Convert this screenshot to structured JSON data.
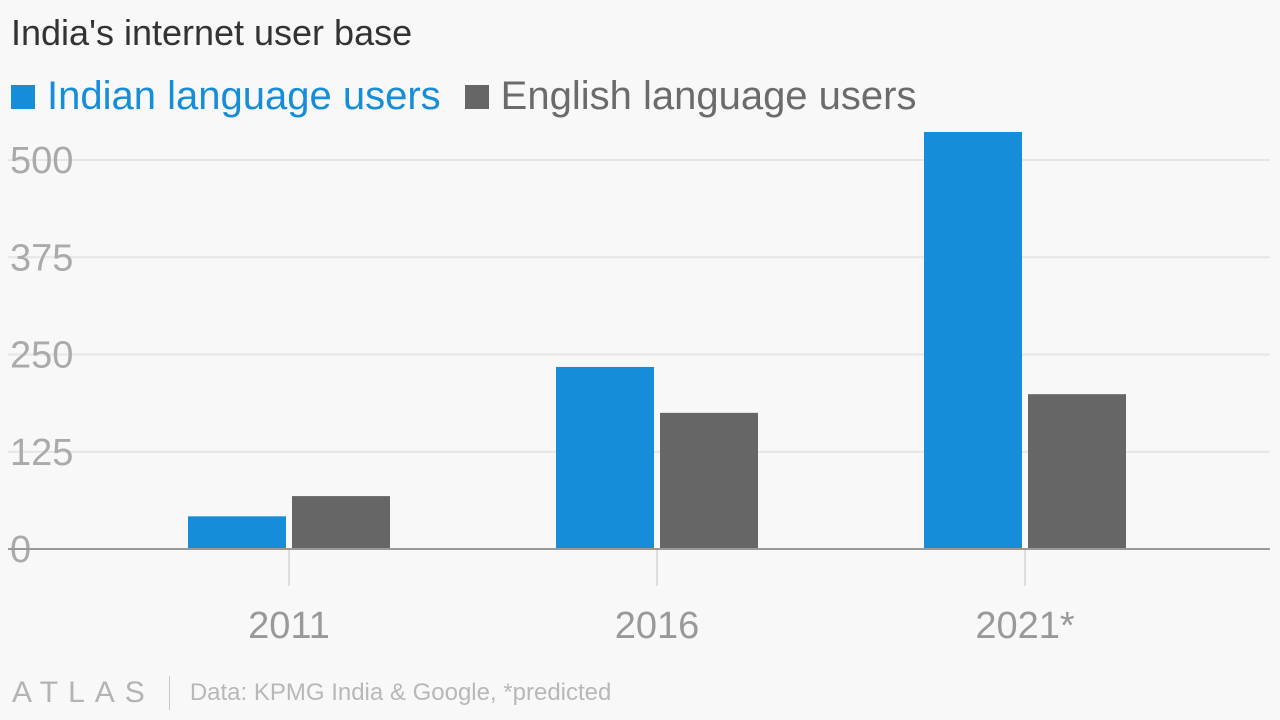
{
  "chart_data": {
    "type": "bar",
    "title": "India's internet user base",
    "categories": [
      "2011",
      "2016",
      "2021*"
    ],
    "series": [
      {
        "name": "Indian language users",
        "color": "#168dd9",
        "values": [
          42,
          234,
          536
        ]
      },
      {
        "name": "English language users",
        "color": "#666666",
        "values": [
          68,
          175,
          199
        ]
      }
    ],
    "yticks": [
      "0",
      "125",
      "250",
      "375",
      "500"
    ],
    "ylim": [
      0,
      536
    ],
    "grid": true,
    "legend_position": "top-left",
    "xlabel": "",
    "ylabel": ""
  },
  "footer": {
    "logo": "ATLAS",
    "source": "Data: KPMG India & Google, *predicted"
  }
}
